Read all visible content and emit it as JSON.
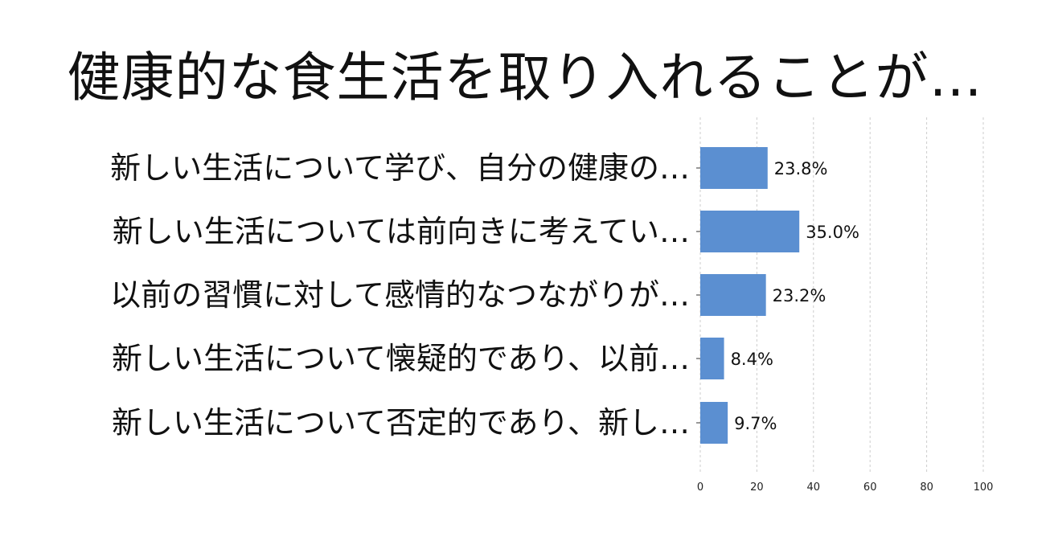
{
  "title": "健康的な食生活を取り入れることが…",
  "colors": {
    "bar": "#5b8fd1",
    "grid": "#cccccc",
    "text": "#111111"
  },
  "chart_data": {
    "type": "bar",
    "orientation": "horizontal",
    "title": "健康的な食生活を取り入れることが…",
    "categories": [
      "新しい生活について学び、自分の健康の…",
      "新しい生活については前向きに考えてい…",
      "以前の習慣に対して感情的なつながりが…",
      "新しい生活について懐疑的であり、以前…",
      "新しい生活について否定的であり、新し…"
    ],
    "values": [
      23.8,
      35.0,
      23.2,
      8.4,
      9.7
    ],
    "value_labels": [
      "23.8%",
      "35.0%",
      "23.2%",
      "8.4%",
      "9.7%"
    ],
    "xlim": [
      0,
      100
    ],
    "xticks": [
      0,
      20,
      40,
      60,
      80,
      100
    ],
    "xtick_labels": [
      "0",
      "20",
      "40",
      "60",
      "80",
      "100"
    ],
    "grid": true,
    "legend": false
  }
}
